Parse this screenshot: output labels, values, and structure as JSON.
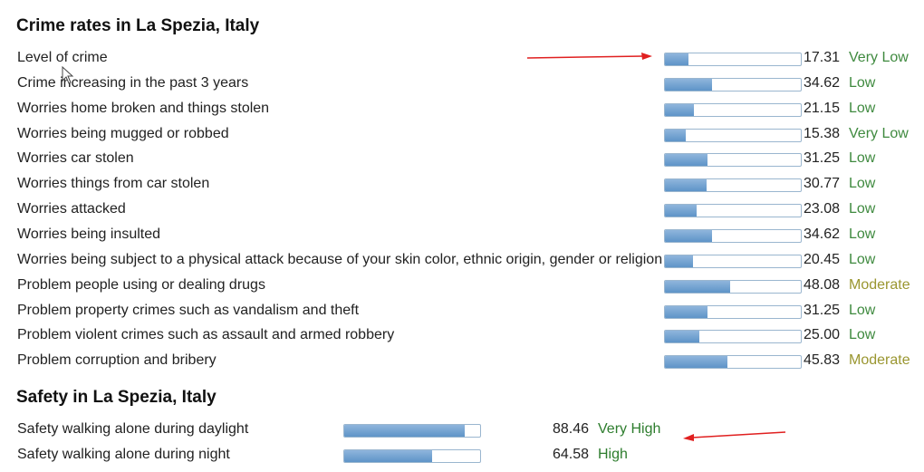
{
  "crime": {
    "title": "Crime rates in La Spezia, Italy",
    "rows": [
      {
        "label": "Level of crime",
        "value": "17.31",
        "rating": "Very Low",
        "level": 17.31,
        "cls": "very-low"
      },
      {
        "label": "Crime increasing in the past 3 years",
        "value": "34.62",
        "rating": "Low",
        "level": 34.62,
        "cls": "low"
      },
      {
        "label": "Worries home broken and things stolen",
        "value": "21.15",
        "rating": "Low",
        "level": 21.15,
        "cls": "low"
      },
      {
        "label": "Worries being mugged or robbed",
        "value": "15.38",
        "rating": "Very Low",
        "level": 15.38,
        "cls": "very-low"
      },
      {
        "label": "Worries car stolen",
        "value": "31.25",
        "rating": "Low",
        "level": 31.25,
        "cls": "low"
      },
      {
        "label": "Worries things from car stolen",
        "value": "30.77",
        "rating": "Low",
        "level": 30.77,
        "cls": "low"
      },
      {
        "label": "Worries attacked",
        "value": "23.08",
        "rating": "Low",
        "level": 23.08,
        "cls": "low"
      },
      {
        "label": "Worries being insulted",
        "value": "34.62",
        "rating": "Low",
        "level": 34.62,
        "cls": "low"
      },
      {
        "label": "Worries being subject to a physical attack because of your skin color, ethnic origin, gender or religion",
        "value": "20.45",
        "rating": "Low",
        "level": 20.45,
        "cls": "low"
      },
      {
        "label": "Problem people using or dealing drugs",
        "value": "48.08",
        "rating": "Moderate",
        "level": 48.08,
        "cls": "moderate"
      },
      {
        "label": "Problem property crimes such as vandalism and theft",
        "value": "31.25",
        "rating": "Low",
        "level": 31.25,
        "cls": "low"
      },
      {
        "label": "Problem violent crimes such as assault and armed robbery",
        "value": "25.00",
        "rating": "Low",
        "level": 25.0,
        "cls": "low"
      },
      {
        "label": "Problem corruption and bribery",
        "value": "45.83",
        "rating": "Moderate",
        "level": 45.83,
        "cls": "moderate"
      }
    ]
  },
  "safety": {
    "title": "Safety in La Spezia, Italy",
    "rows": [
      {
        "label": "Safety walking alone during daylight",
        "value": "88.46",
        "rating": "Very High",
        "level": 88.46,
        "cls": "very-high"
      },
      {
        "label": "Safety walking alone during night",
        "value": "64.58",
        "rating": "High",
        "level": 64.58,
        "cls": "high"
      }
    ]
  },
  "colors": {
    "bar_fill": "#6b9fd0",
    "bar_border": "#9ab6cf",
    "rating_green": "#3f8a3f",
    "rating_moderate": "#9a9630",
    "annotation_arrow": "#e02020"
  }
}
